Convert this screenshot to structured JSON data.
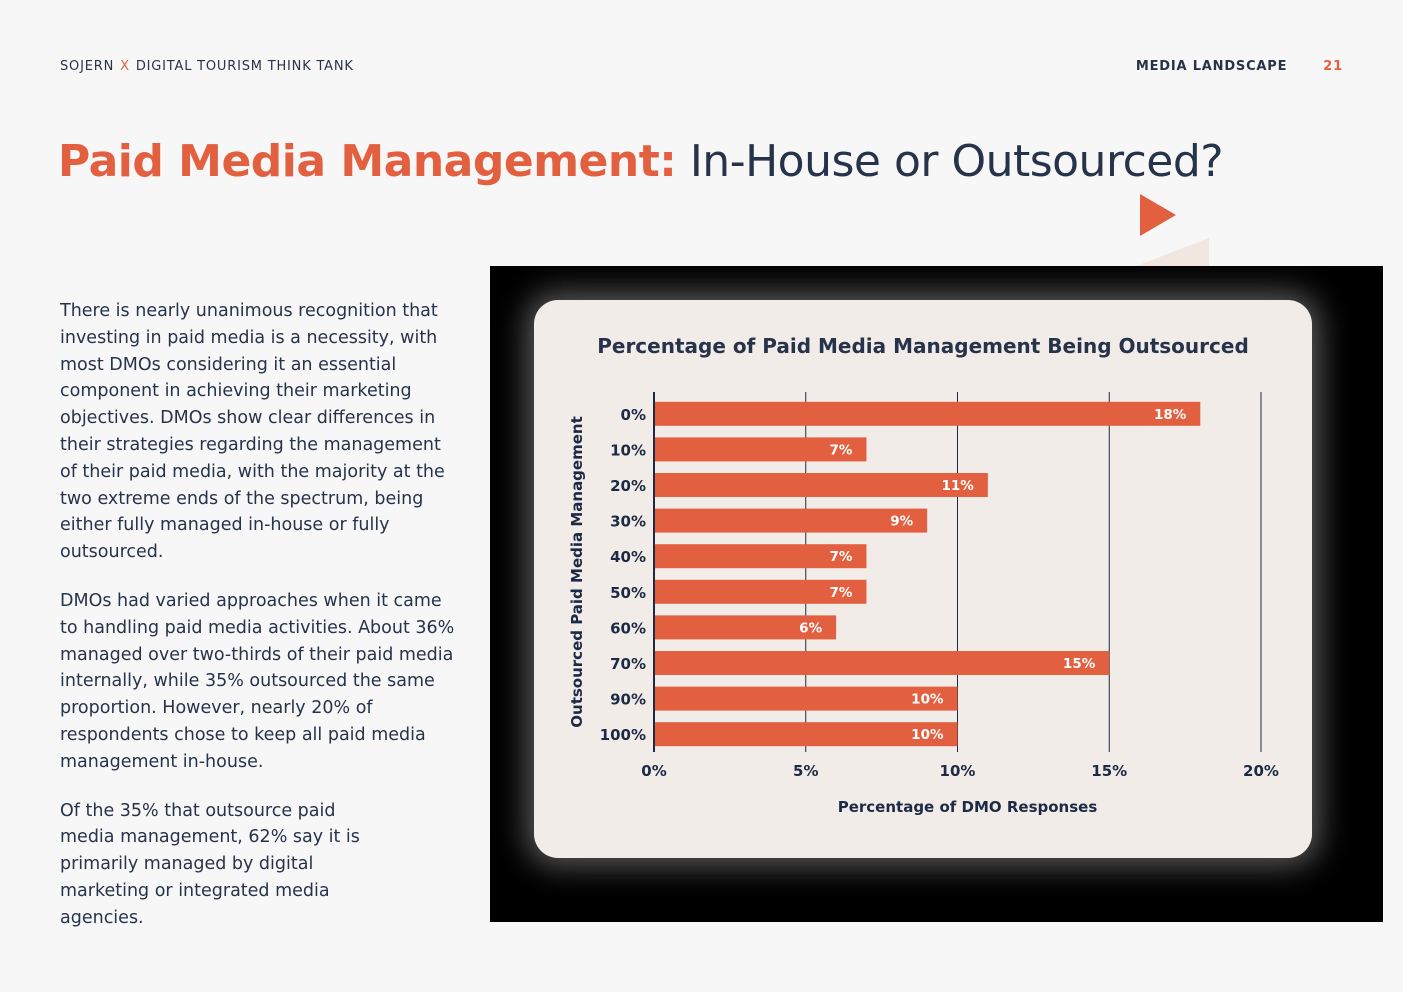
{
  "header": {
    "brand_left": "SOJERN",
    "separator": "X",
    "brand_right": "DIGITAL TOURISM THINK TANK",
    "section": "MEDIA LANDSCAPE",
    "page_number": "21"
  },
  "title": {
    "accent": "Paid Media Management:",
    "rest": " In-House or Outsourced?"
  },
  "body": {
    "paragraphs": [
      "There is nearly unanimous recognition that investing in paid media is a necessity, with most DMOs considering it an essential component in achieving their marketing objectives. DMOs show clear differences in their strategies regarding the management of their paid media, with the majority at the two extreme ends of the spectrum, being either fully managed in-house or fully outsourced.",
      "DMOs had varied approaches when it came to handling paid media activities. About 36% managed over two-thirds of their paid media internally, while 35% outsourced the same proportion. However, nearly 20% of respondents chose to keep all paid media management in-house.",
      "Of the 35% that outsource paid media management, 62% say it is primarily managed by digital marketing or integrated media agencies."
    ]
  },
  "colors": {
    "accent": "#e2603f",
    "navy": "#27334a",
    "card": "#f1ece8"
  },
  "chart_data": {
    "type": "bar",
    "orientation": "horizontal",
    "title": "Percentage of Paid Media Management Being Outsourced",
    "categories": [
      "0%",
      "10%",
      "20%",
      "30%",
      "40%",
      "50%",
      "60%",
      "70%",
      "90%",
      "100%"
    ],
    "values": [
      18,
      7,
      11,
      9,
      7,
      7,
      6,
      15,
      10,
      10
    ],
    "value_labels": [
      "18%",
      "7%",
      "11%",
      "9%",
      "7%",
      "7%",
      "6%",
      "15%",
      "10%",
      "10%"
    ],
    "xlabel": "Percentage of DMO Responses",
    "ylabel": "Outsourced Paid Media Management",
    "xlim": [
      0,
      20
    ],
    "xticks": [
      0,
      5,
      10,
      15,
      20
    ],
    "xtick_labels": [
      "0%",
      "5%",
      "10%",
      "15%",
      "20%"
    ],
    "grid": "vertical",
    "bar_color": "#e2603f"
  }
}
